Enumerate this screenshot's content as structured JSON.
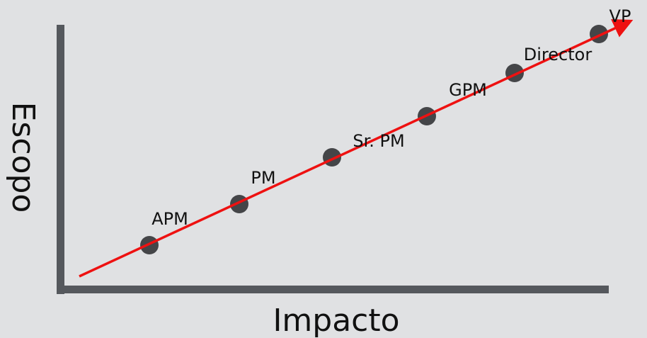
{
  "axes": {
    "x_label": "Impacto",
    "y_label": "Escopo"
  },
  "nodes": [
    {
      "label": "APM"
    },
    {
      "label": "PM"
    },
    {
      "label": "Sr. PM"
    },
    {
      "label": "GPM"
    },
    {
      "label": "Director"
    },
    {
      "label": "VP"
    }
  ]
}
